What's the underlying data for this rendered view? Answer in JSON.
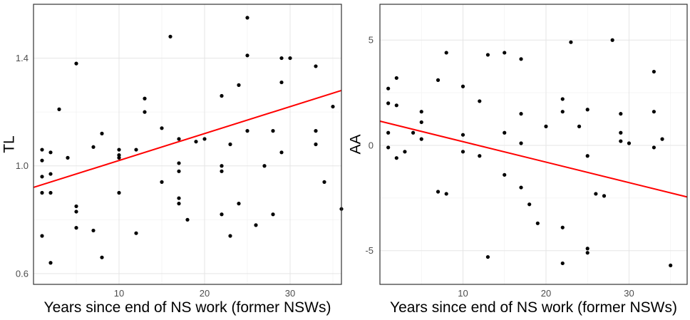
{
  "chart_data": [
    {
      "type": "scatter",
      "title": "",
      "xlabel": "Years since end of NS work (former NSWs)",
      "ylabel": "TL",
      "xlim": [
        0,
        36
      ],
      "ylim": [
        0.56,
        1.6
      ],
      "x_ticks": [
        10,
        20,
        30
      ],
      "y_ticks": [
        0.6,
        1.0,
        1.4
      ],
      "y_tick_labels": [
        "0.6",
        "1.0",
        "1.4"
      ],
      "grid": true,
      "legend": "none",
      "colors": {
        "points": "#000000",
        "fit_line": "#ff0000",
        "grid": "#e5e5e5",
        "border": "#333333"
      },
      "fit_line": {
        "x": [
          0,
          36
        ],
        "y": [
          0.92,
          1.28
        ]
      },
      "points": [
        [
          1,
          0.74
        ],
        [
          1,
          0.9
        ],
        [
          1,
          0.96
        ],
        [
          1,
          1.02
        ],
        [
          1,
          1.06
        ],
        [
          2,
          0.64
        ],
        [
          2,
          0.9
        ],
        [
          2,
          0.97
        ],
        [
          2,
          1.05
        ],
        [
          3,
          1.21
        ],
        [
          4,
          1.03
        ],
        [
          5,
          0.77
        ],
        [
          5,
          0.83
        ],
        [
          5,
          0.85
        ],
        [
          5,
          1.38
        ],
        [
          7,
          0.76
        ],
        [
          7,
          1.07
        ],
        [
          8,
          0.66
        ],
        [
          8,
          1.12
        ],
        [
          10,
          0.9
        ],
        [
          10,
          1.03
        ],
        [
          10,
          1.04
        ],
        [
          10,
          1.06
        ],
        [
          12,
          0.75
        ],
        [
          12,
          1.06
        ],
        [
          13,
          1.2
        ],
        [
          13,
          1.25
        ],
        [
          15,
          0.94
        ],
        [
          15,
          1.14
        ],
        [
          16,
          1.48
        ],
        [
          17,
          0.86
        ],
        [
          17,
          0.88
        ],
        [
          17,
          0.98
        ],
        [
          17,
          1.01
        ],
        [
          17,
          1.1
        ],
        [
          18,
          0.8
        ],
        [
          19,
          1.09
        ],
        [
          20,
          1.1
        ],
        [
          22,
          0.82
        ],
        [
          22,
          0.98
        ],
        [
          22,
          1.0
        ],
        [
          22,
          1.26
        ],
        [
          23,
          0.74
        ],
        [
          23,
          1.08
        ],
        [
          24,
          0.86
        ],
        [
          24,
          1.3
        ],
        [
          25,
          1.13
        ],
        [
          25,
          1.41
        ],
        [
          25,
          1.55
        ],
        [
          26,
          0.78
        ],
        [
          27,
          1.0
        ],
        [
          28,
          0.82
        ],
        [
          28,
          1.13
        ],
        [
          29,
          1.05
        ],
        [
          29,
          1.31
        ],
        [
          29,
          1.4
        ],
        [
          30,
          1.4
        ],
        [
          33,
          1.08
        ],
        [
          33,
          1.13
        ],
        [
          33,
          1.37
        ],
        [
          34,
          0.94
        ],
        [
          35,
          1.22
        ],
        [
          36,
          0.84
        ]
      ]
    },
    {
      "type": "scatter",
      "title": "",
      "xlabel": "Years since end of NS work (former NSWs)",
      "ylabel": "AA",
      "xlim": [
        0,
        37
      ],
      "ylim": [
        -6.6,
        6.7
      ],
      "x_ticks": [
        10,
        20,
        30
      ],
      "y_ticks": [
        -5,
        0,
        5
      ],
      "y_tick_labels": [
        "-5",
        "0",
        "5"
      ],
      "grid": true,
      "legend": "none",
      "colors": {
        "points": "#000000",
        "fit_line": "#ff0000",
        "grid": "#e5e5e5",
        "border": "#333333"
      },
      "fit_line": {
        "x": [
          0,
          37
        ],
        "y": [
          1.15,
          -2.45
        ]
      },
      "points": [
        [
          1,
          -0.1
        ],
        [
          1,
          0.6
        ],
        [
          1,
          2.0
        ],
        [
          1,
          2.7
        ],
        [
          2,
          -0.6
        ],
        [
          2,
          1.9
        ],
        [
          2,
          3.2
        ],
        [
          3,
          -0.3
        ],
        [
          4,
          0.6
        ],
        [
          5,
          0.3
        ],
        [
          5,
          1.1
        ],
        [
          5,
          1.6
        ],
        [
          7,
          -2.2
        ],
        [
          7,
          3.1
        ],
        [
          8,
          -2.3
        ],
        [
          8,
          4.4
        ],
        [
          10,
          -0.3
        ],
        [
          10,
          0.5
        ],
        [
          10,
          2.8
        ],
        [
          12,
          -0.5
        ],
        [
          12,
          2.1
        ],
        [
          13,
          -5.3
        ],
        [
          13,
          4.3
        ],
        [
          15,
          -1.4
        ],
        [
          15,
          0.6
        ],
        [
          15,
          4.4
        ],
        [
          17,
          -2.0
        ],
        [
          17,
          0.1
        ],
        [
          17,
          1.5
        ],
        [
          17,
          4.1
        ],
        [
          18,
          -2.8
        ],
        [
          19,
          -3.7
        ],
        [
          20,
          0.9
        ],
        [
          22,
          -5.6
        ],
        [
          22,
          -3.9
        ],
        [
          22,
          1.6
        ],
        [
          22,
          2.2
        ],
        [
          23,
          4.9
        ],
        [
          24,
          0.9
        ],
        [
          25,
          -5.1
        ],
        [
          25,
          -4.9
        ],
        [
          25,
          -0.5
        ],
        [
          25,
          1.7
        ],
        [
          26,
          -2.3
        ],
        [
          27,
          -2.4
        ],
        [
          28,
          5.0
        ],
        [
          29,
          0.2
        ],
        [
          29,
          0.6
        ],
        [
          29,
          1.5
        ],
        [
          30,
          0.1
        ],
        [
          33,
          -0.1
        ],
        [
          33,
          1.6
        ],
        [
          33,
          3.5
        ],
        [
          34,
          0.3
        ],
        [
          35,
          -5.7
        ]
      ]
    }
  ]
}
